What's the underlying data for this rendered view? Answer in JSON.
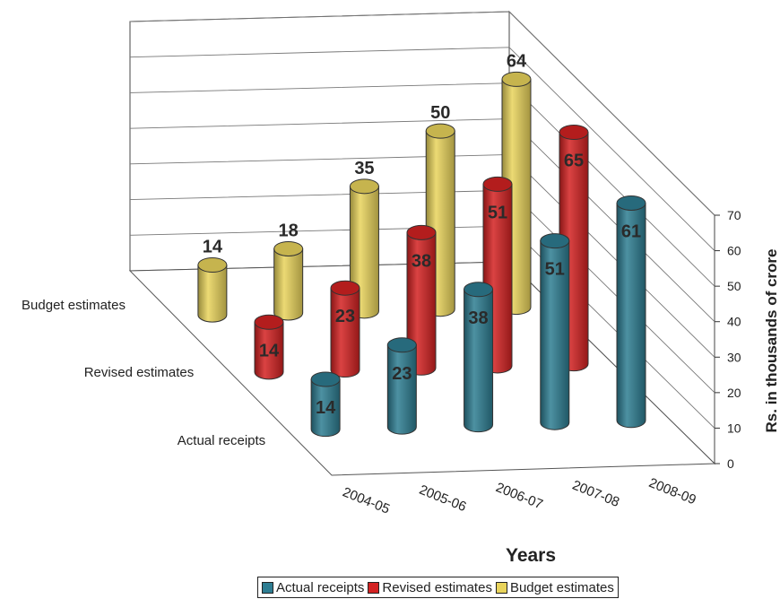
{
  "chart_data": {
    "type": "bar",
    "bar_shape": "3d-cylinder",
    "categories": [
      "2004-05",
      "2005-06",
      "2006-07",
      "2007-08",
      "2008-09"
    ],
    "series": [
      {
        "name": "Actual receipts",
        "color": "#2e7d92",
        "values": [
          14,
          23,
          38,
          51,
          61
        ]
      },
      {
        "name": "Revised estimates",
        "color": "#d32222",
        "values": [
          14,
          23,
          38,
          51,
          65
        ]
      },
      {
        "name": "Budget estimates",
        "color": "#e9d45c",
        "values": [
          14,
          18,
          35,
          50,
          64
        ]
      }
    ],
    "depth_labels": [
      "Budget estimates",
      "Revised estimates",
      "Actual receipts"
    ],
    "xlabel": "Years",
    "ylabel": "Rs. in thousands of crore",
    "ylim": [
      0,
      70
    ],
    "yticks": [
      0,
      10,
      20,
      30,
      40,
      50,
      60,
      70
    ],
    "grid": true,
    "legend_position": "bottom"
  }
}
